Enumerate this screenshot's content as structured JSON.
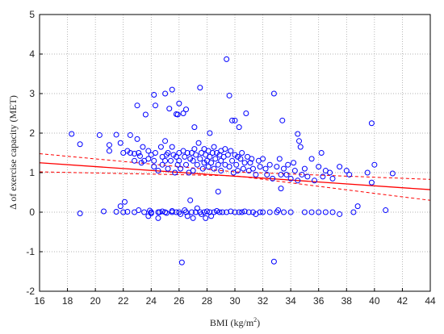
{
  "chart_data": {
    "type": "scatter",
    "title": "",
    "xlabel": "BMI (kg/m²)",
    "ylabel": "Δ of exercise capacity (MET)",
    "xlim": [
      16,
      44
    ],
    "ylim": [
      -2,
      5
    ],
    "xticks": [
      "16",
      "18",
      "20",
      "22",
      "24",
      "26",
      "28",
      "30",
      "32",
      "34",
      "36",
      "38",
      "40",
      "42",
      "44"
    ],
    "yticks": [
      "-2",
      "-1",
      "0",
      "1",
      "2",
      "3",
      "4",
      "5"
    ],
    "grid": true,
    "grid_style": "dotted",
    "marker": "open-circle",
    "marker_color": "#0000ff",
    "fit_line": {
      "style": "solid",
      "color": "#ff0000",
      "points": [
        [
          16,
          1.25
        ],
        [
          44,
          0.57
        ]
      ]
    },
    "confidence_band": {
      "style": "dashed",
      "color": "#ff0000",
      "upper": [
        [
          16,
          1.48
        ],
        [
          30,
          1.02
        ],
        [
          44,
          0.83
        ]
      ],
      "lower": [
        [
          16,
          1.02
        ],
        [
          30,
          0.92
        ],
        [
          44,
          0.3
        ]
      ]
    },
    "points": [
      [
        18.3,
        1.98
      ],
      [
        18.9,
        1.72
      ],
      [
        18.9,
        -0.03
      ],
      [
        20.3,
        1.95
      ],
      [
        20.6,
        0.02
      ],
      [
        21.0,
        1.7
      ],
      [
        21.0,
        1.55
      ],
      [
        21.5,
        1.96
      ],
      [
        21.5,
        0.01
      ],
      [
        21.8,
        1.75
      ],
      [
        21.8,
        0.15
      ],
      [
        22.0,
        1.5
      ],
      [
        22.0,
        0.0
      ],
      [
        22.1,
        0.26
      ],
      [
        22.3,
        1.55
      ],
      [
        22.3,
        0.01
      ],
      [
        22.5,
        1.95
      ],
      [
        22.5,
        1.5
      ],
      [
        22.8,
        1.48
      ],
      [
        22.8,
        1.3
      ],
      [
        22.8,
        0.0
      ],
      [
        23.0,
        1.85
      ],
      [
        23.0,
        2.7
      ],
      [
        23.1,
        1.5
      ],
      [
        23.1,
        0.05
      ],
      [
        23.2,
        1.42
      ],
      [
        23.3,
        1.25
      ],
      [
        23.4,
        1.65
      ],
      [
        23.5,
        1.3
      ],
      [
        23.5,
        0.0
      ],
      [
        23.6,
        2.47
      ],
      [
        23.8,
        1.55
      ],
      [
        23.8,
        1.35
      ],
      [
        23.8,
        -0.1
      ],
      [
        23.9,
        0.04
      ],
      [
        24.0,
        1.45
      ],
      [
        24.0,
        0.0
      ],
      [
        24.0,
        -0.03
      ],
      [
        24.2,
        2.97
      ],
      [
        24.2,
        1.3
      ],
      [
        24.2,
        1.15
      ],
      [
        24.3,
        2.7
      ],
      [
        24.3,
        1.5
      ],
      [
        24.5,
        1.05
      ],
      [
        24.5,
        0.0
      ],
      [
        24.5,
        -0.15
      ],
      [
        24.6,
        0.0
      ],
      [
        24.7,
        1.65
      ],
      [
        24.8,
        1.4
      ],
      [
        24.8,
        1.2
      ],
      [
        24.8,
        0.02
      ],
      [
        25.0,
        3.0
      ],
      [
        25.0,
        1.8
      ],
      [
        25.0,
        1.3
      ],
      [
        25.0,
        0.0
      ],
      [
        25.1,
        1.45
      ],
      [
        25.1,
        -0.02
      ],
      [
        25.2,
        1.5
      ],
      [
        25.2,
        1.1
      ],
      [
        25.3,
        2.62
      ],
      [
        25.4,
        1.3
      ],
      [
        25.5,
        3.1
      ],
      [
        25.5,
        1.65
      ],
      [
        25.5,
        0.0
      ],
      [
        25.5,
        0.03
      ],
      [
        25.6,
        1.45
      ],
      [
        25.7,
        1.0
      ],
      [
        25.8,
        2.48
      ],
      [
        25.8,
        1.4
      ],
      [
        25.8,
        0.0
      ],
      [
        25.9,
        2.47
      ],
      [
        25.9,
        1.2
      ],
      [
        26.0,
        2.75
      ],
      [
        26.0,
        1.5
      ],
      [
        26.0,
        1.3
      ],
      [
        26.0,
        0.0
      ],
      [
        26.1,
        1.1
      ],
      [
        26.1,
        -0.05
      ],
      [
        26.2,
        -1.27
      ],
      [
        26.3,
        2.5
      ],
      [
        26.3,
        1.55
      ],
      [
        26.4,
        1.4
      ],
      [
        26.4,
        0.05
      ],
      [
        26.5,
        2.6
      ],
      [
        26.5,
        1.2
      ],
      [
        26.5,
        0.0
      ],
      [
        26.6,
        1.5
      ],
      [
        26.6,
        -0.1
      ],
      [
        26.7,
        1.0
      ],
      [
        26.8,
        1.35
      ],
      [
        26.8,
        0.3
      ],
      [
        26.9,
        1.5
      ],
      [
        26.9,
        0.0
      ],
      [
        27.0,
        1.3
      ],
      [
        27.0,
        1.05
      ],
      [
        27.0,
        -0.15
      ],
      [
        27.1,
        2.15
      ],
      [
        27.1,
        1.6
      ],
      [
        27.2,
        1.45
      ],
      [
        27.2,
        0.0
      ],
      [
        27.3,
        1.2
      ],
      [
        27.3,
        0.1
      ],
      [
        27.4,
        1.75
      ],
      [
        27.5,
        3.15
      ],
      [
        27.5,
        1.35
      ],
      [
        27.5,
        0.0
      ],
      [
        27.6,
        1.5
      ],
      [
        27.6,
        -0.05
      ],
      [
        27.7,
        1.1
      ],
      [
        27.8,
        1.6
      ],
      [
        27.8,
        1.25
      ],
      [
        27.8,
        0.0
      ],
      [
        27.9,
        1.45
      ],
      [
        27.9,
        -0.15
      ],
      [
        28.0,
        1.3
      ],
      [
        28.0,
        0.02
      ],
      [
        28.1,
        1.55
      ],
      [
        28.1,
        1.15
      ],
      [
        28.2,
        2.0
      ],
      [
        28.2,
        1.4
      ],
      [
        28.2,
        0.0
      ],
      [
        28.3,
        1.25
      ],
      [
        28.3,
        -0.1
      ],
      [
        28.4,
        1.5
      ],
      [
        28.5,
        1.65
      ],
      [
        28.5,
        1.1
      ],
      [
        28.5,
        0.0
      ],
      [
        28.6,
        1.35
      ],
      [
        28.7,
        1.5
      ],
      [
        28.7,
        0.03
      ],
      [
        28.8,
        1.2
      ],
      [
        28.8,
        0.52
      ],
      [
        28.9,
        1.45
      ],
      [
        28.9,
        0.0
      ],
      [
        29.0,
        1.55
      ],
      [
        29.0,
        1.3
      ],
      [
        29.0,
        1.05
      ],
      [
        29.1,
        0.0
      ],
      [
        29.2,
        1.4
      ],
      [
        29.3,
        1.6
      ],
      [
        29.3,
        1.2
      ],
      [
        29.4,
        3.87
      ],
      [
        29.4,
        0.0
      ],
      [
        29.5,
        1.45
      ],
      [
        29.6,
        2.95
      ],
      [
        29.6,
        1.15
      ],
      [
        29.7,
        1.55
      ],
      [
        29.7,
        0.02
      ],
      [
        29.8,
        2.32
      ],
      [
        29.8,
        1.3
      ],
      [
        29.9,
        1.0
      ],
      [
        30.0,
        2.32
      ],
      [
        30.0,
        1.45
      ],
      [
        30.0,
        0.0
      ],
      [
        30.1,
        1.2
      ],
      [
        30.2,
        1.4
      ],
      [
        30.2,
        1.05
      ],
      [
        30.3,
        2.15
      ],
      [
        30.3,
        0.0
      ],
      [
        30.4,
        1.35
      ],
      [
        30.5,
        1.5
      ],
      [
        30.5,
        0.0
      ],
      [
        30.6,
        1.1
      ],
      [
        30.7,
        1.25
      ],
      [
        30.7,
        0.02
      ],
      [
        30.8,
        2.5
      ],
      [
        30.9,
        1.4
      ],
      [
        31.0,
        1.05
      ],
      [
        31.0,
        0.0
      ],
      [
        31.1,
        1.25
      ],
      [
        31.2,
        1.35
      ],
      [
        31.3,
        1.1
      ],
      [
        31.3,
        0.0
      ],
      [
        31.5,
        0.95
      ],
      [
        31.5,
        -0.05
      ],
      [
        31.7,
        1.3
      ],
      [
        31.8,
        1.15
      ],
      [
        31.8,
        0.0
      ],
      [
        32.0,
        1.35
      ],
      [
        32.0,
        0.0
      ],
      [
        32.2,
        1.1
      ],
      [
        32.3,
        0.95
      ],
      [
        32.5,
        1.2
      ],
      [
        32.5,
        0.0
      ],
      [
        32.7,
        0.85
      ],
      [
        32.8,
        3.0
      ],
      [
        32.8,
        -1.25
      ],
      [
        33.0,
        1.15
      ],
      [
        33.0,
        0.0
      ],
      [
        33.1,
        0.05
      ],
      [
        33.2,
        1.35
      ],
      [
        33.3,
        0.95
      ],
      [
        33.3,
        0.6
      ],
      [
        33.4,
        2.32
      ],
      [
        33.5,
        1.1
      ],
      [
        33.5,
        0.0
      ],
      [
        33.7,
        0.95
      ],
      [
        33.8,
        1.2
      ],
      [
        34.0,
        0.85
      ],
      [
        34.0,
        0.0
      ],
      [
        34.2,
        1.25
      ],
      [
        34.3,
        1.05
      ],
      [
        34.5,
        1.98
      ],
      [
        34.5,
        0.8
      ],
      [
        34.6,
        1.8
      ],
      [
        34.7,
        1.65
      ],
      [
        34.8,
        0.95
      ],
      [
        35.0,
        1.1
      ],
      [
        35.0,
        0.0
      ],
      [
        35.2,
        0.9
      ],
      [
        35.5,
        1.35
      ],
      [
        35.5,
        0.0
      ],
      [
        35.7,
        0.8
      ],
      [
        36.0,
        1.15
      ],
      [
        36.0,
        0.0
      ],
      [
        36.2,
        1.5
      ],
      [
        36.3,
        0.9
      ],
      [
        36.5,
        1.05
      ],
      [
        36.5,
        0.0
      ],
      [
        36.8,
        1.0
      ],
      [
        37.0,
        0.85
      ],
      [
        37.0,
        0.0
      ],
      [
        37.5,
        1.15
      ],
      [
        37.5,
        -0.05
      ],
      [
        38.0,
        1.05
      ],
      [
        38.2,
        0.95
      ],
      [
        38.5,
        0.0
      ],
      [
        38.8,
        0.15
      ],
      [
        39.5,
        1.0
      ],
      [
        39.8,
        2.25
      ],
      [
        39.8,
        0.75
      ],
      [
        40.0,
        1.2
      ],
      [
        40.8,
        0.05
      ],
      [
        41.3,
        0.98
      ]
    ]
  }
}
